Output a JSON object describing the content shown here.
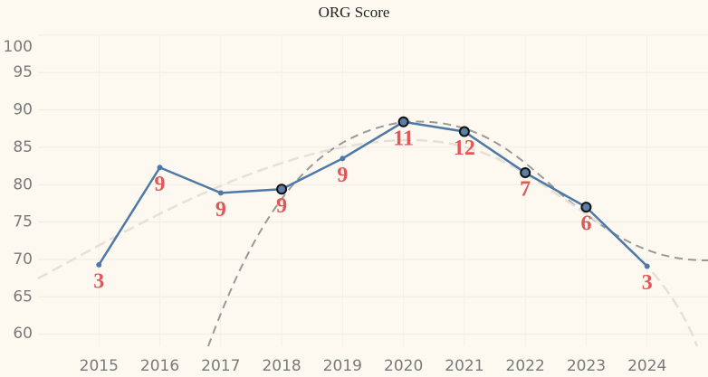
{
  "chart_data": {
    "type": "line",
    "title": "ORG Score",
    "x": [
      2015,
      2016,
      2017,
      2018,
      2019,
      2020,
      2021,
      2022,
      2023,
      2024
    ],
    "values": [
      69.3,
      82.3,
      78.9,
      79.4,
      83.5,
      88.4,
      87.1,
      81.6,
      77.0,
      69.1
    ],
    "point_labels": [
      3,
      9,
      9,
      9,
      9,
      11,
      12,
      7,
      6,
      3
    ],
    "highlight_x": [
      2018,
      2020,
      2021,
      2022,
      2023
    ],
    "color": "#4e79a7",
    "label_color": "#e15759",
    "xlim": [
      2014.0,
      2025.0
    ],
    "xticks": [
      2015,
      2016,
      2017,
      2018,
      2019,
      2020,
      2021,
      2022,
      2023,
      2024
    ],
    "ylim": [
      58.4,
      100.1
    ],
    "yticks": [
      60,
      65,
      70,
      75,
      80,
      85,
      90,
      95,
      100
    ],
    "grid": true
  }
}
